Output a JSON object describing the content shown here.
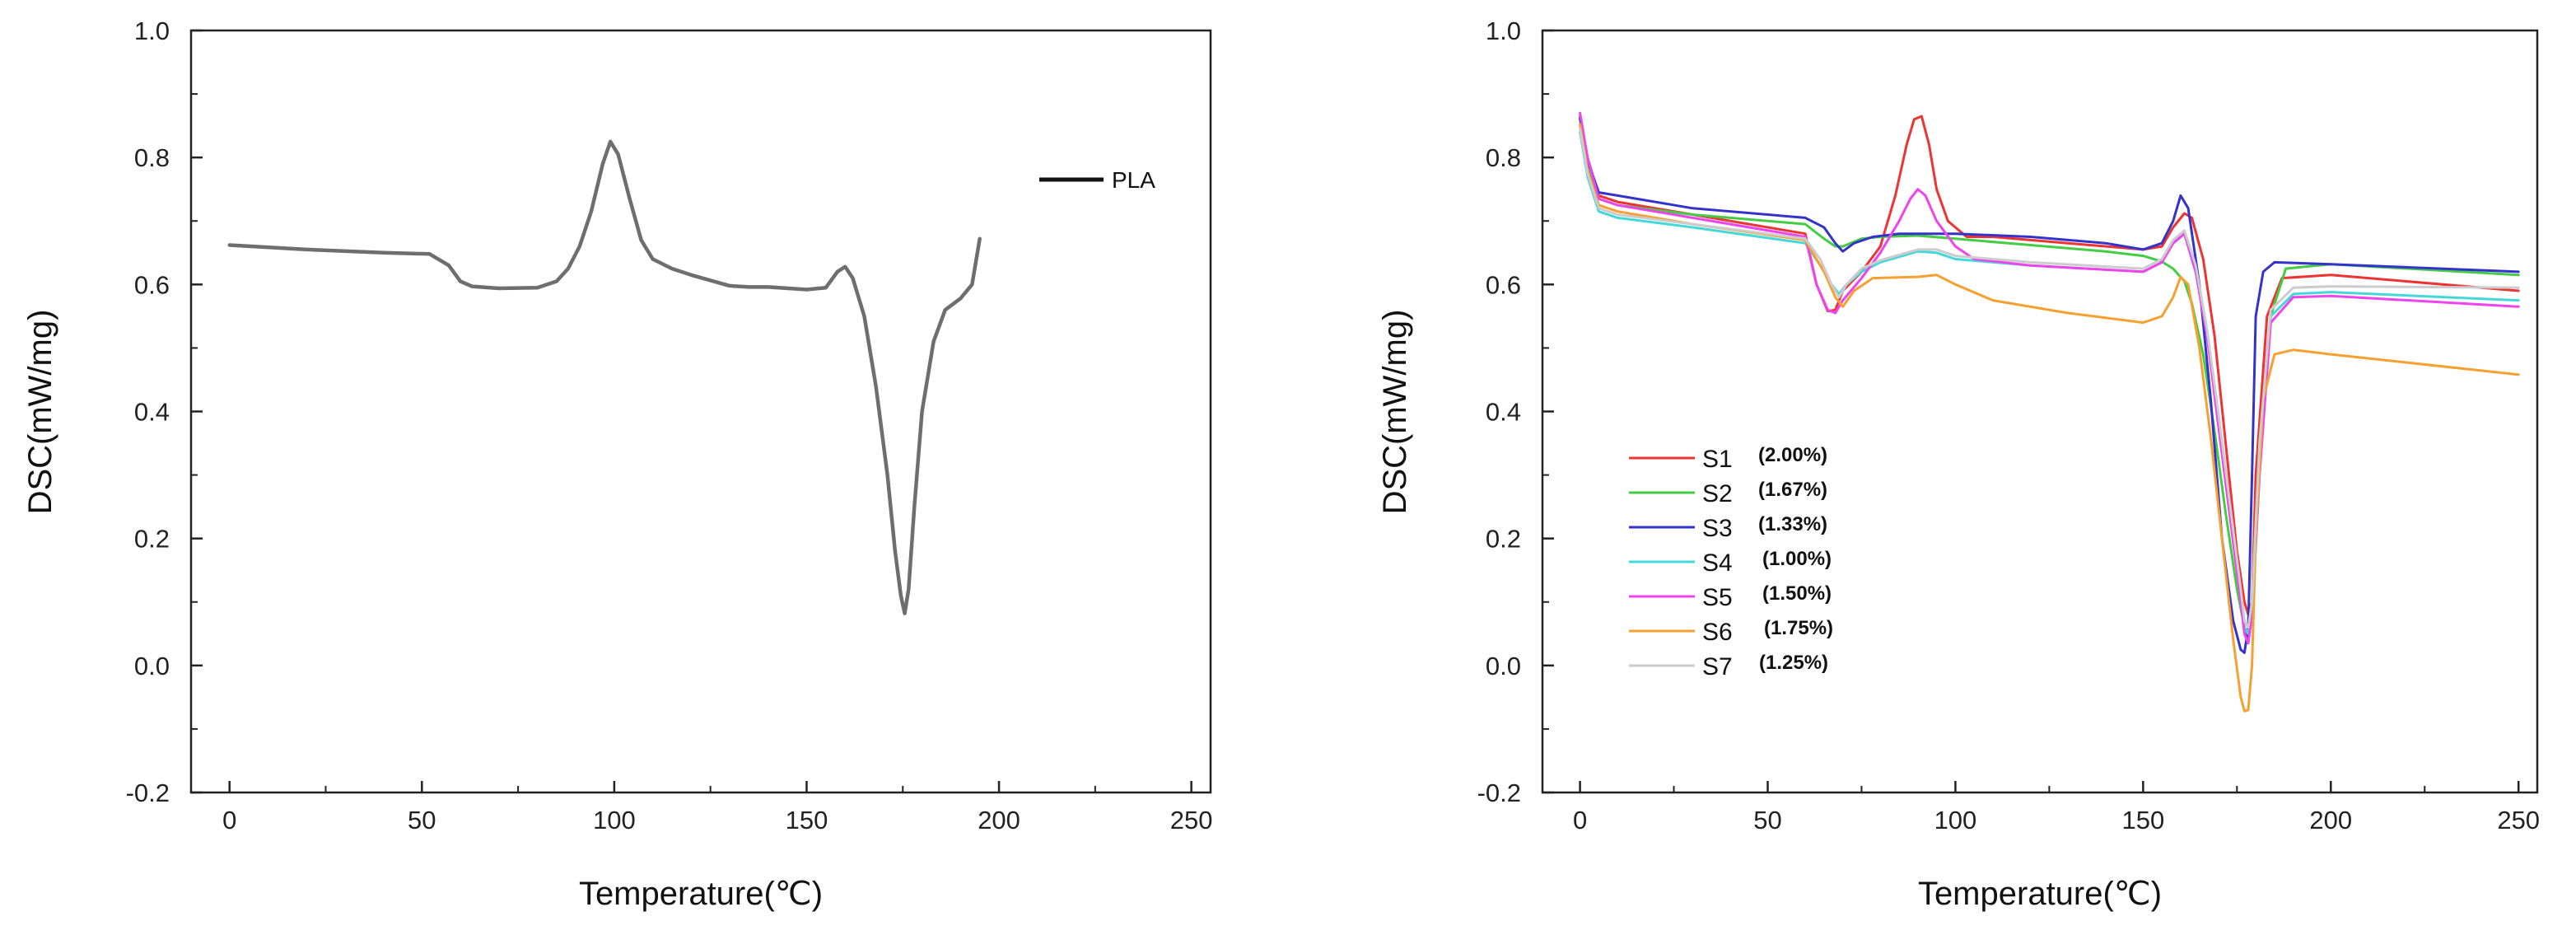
{
  "chart_data": [
    {
      "type": "line",
      "title": "",
      "xlabel": "Temperature(℃)",
      "ylabel": "DSC(mW/mg)",
      "xlim": [
        -10,
        255
      ],
      "ylim": [
        -0.2,
        1.0
      ],
      "xticks": [
        0,
        50,
        100,
        150,
        200,
        250
      ],
      "yticks": [
        -0.2,
        0.0,
        0.2,
        0.4,
        0.6,
        0.8,
        1.0
      ],
      "legend_position": "top-right",
      "series": [
        {
          "name": "PLA",
          "color": "#6e6e6e",
          "legend_color": "#111111",
          "x": [
            0,
            20,
            40,
            52,
            57,
            60,
            63,
            70,
            80,
            85,
            88,
            91,
            94,
            97,
            99,
            101,
            104,
            107,
            110,
            115,
            120,
            130,
            135,
            140,
            150,
            155,
            158,
            160,
            162,
            165,
            168,
            171,
            173,
            174.5,
            175.5,
            176.5,
            178,
            180,
            183,
            186,
            190,
            193,
            195
          ],
          "y": [
            0.662,
            0.655,
            0.65,
            0.648,
            0.63,
            0.605,
            0.597,
            0.594,
            0.595,
            0.605,
            0.625,
            0.66,
            0.715,
            0.79,
            0.825,
            0.805,
            0.735,
            0.67,
            0.64,
            0.625,
            0.615,
            0.598,
            0.596,
            0.596,
            0.592,
            0.595,
            0.62,
            0.628,
            0.61,
            0.55,
            0.44,
            0.3,
            0.18,
            0.11,
            0.082,
            0.12,
            0.25,
            0.4,
            0.51,
            0.56,
            0.578,
            0.6,
            0.672
          ]
        }
      ]
    },
    {
      "type": "line",
      "title": "",
      "xlabel": "Temperature(℃)",
      "ylabel": "DSC(mW/mg)",
      "xlim": [
        -10,
        255
      ],
      "ylim": [
        -0.2,
        1.0
      ],
      "xticks": [
        0,
        50,
        100,
        150,
        200,
        250
      ],
      "yticks": [
        -0.2,
        0.0,
        0.2,
        0.4,
        0.6,
        0.8,
        1.0
      ],
      "legend_position": "center-left",
      "series": [
        {
          "name": "S1",
          "label": "(2.00%)",
          "color": "#ee3333",
          "x": [
            0,
            2,
            5,
            10,
            30,
            60,
            63,
            66,
            68,
            70,
            75,
            80,
            84,
            87,
            89,
            91,
            93,
            95,
            98,
            103,
            110,
            130,
            150,
            155,
            158,
            161,
            163,
            166,
            169,
            172,
            175,
            177,
            178,
            179,
            180,
            183,
            187,
            200,
            250
          ],
          "y": [
            0.865,
            0.8,
            0.74,
            0.73,
            0.71,
            0.68,
            0.6,
            0.558,
            0.56,
            0.59,
            0.62,
            0.66,
            0.74,
            0.82,
            0.86,
            0.865,
            0.82,
            0.75,
            0.7,
            0.675,
            0.675,
            0.665,
            0.655,
            0.66,
            0.69,
            0.712,
            0.705,
            0.64,
            0.52,
            0.35,
            0.18,
            0.1,
            0.08,
            0.1,
            0.3,
            0.55,
            0.61,
            0.615,
            0.59
          ]
        },
        {
          "name": "S2",
          "label": "(1.67%)",
          "color": "#44cc44",
          "x": [
            0,
            2,
            5,
            10,
            30,
            60,
            65,
            68,
            70,
            75,
            80,
            90,
            100,
            120,
            140,
            150,
            155,
            158,
            161,
            163,
            166,
            169,
            172,
            175,
            177,
            178,
            179,
            181,
            184,
            188,
            200,
            250
          ],
          "y": [
            0.86,
            0.79,
            0.735,
            0.725,
            0.71,
            0.695,
            0.672,
            0.66,
            0.66,
            0.672,
            0.675,
            0.677,
            0.672,
            0.662,
            0.652,
            0.645,
            0.636,
            0.625,
            0.605,
            0.57,
            0.49,
            0.37,
            0.24,
            0.12,
            0.06,
            0.04,
            0.08,
            0.3,
            0.55,
            0.625,
            0.632,
            0.615
          ]
        },
        {
          "name": "S3",
          "label": "(1.33%)",
          "color": "#3333cc",
          "x": [
            0,
            2,
            5,
            10,
            30,
            60,
            65,
            68,
            70,
            73,
            78,
            85,
            100,
            120,
            140,
            150,
            155,
            158,
            160,
            162,
            165,
            168,
            171,
            174,
            176,
            177,
            178,
            179,
            180,
            182,
            185,
            200,
            250
          ],
          "y": [
            0.862,
            0.795,
            0.745,
            0.74,
            0.72,
            0.705,
            0.69,
            0.665,
            0.652,
            0.665,
            0.675,
            0.68,
            0.68,
            0.675,
            0.665,
            0.655,
            0.665,
            0.7,
            0.74,
            0.72,
            0.6,
            0.42,
            0.2,
            0.07,
            0.025,
            0.02,
            0.06,
            0.3,
            0.55,
            0.62,
            0.635,
            0.632,
            0.62
          ]
        },
        {
          "name": "S4",
          "label": "(1.00%)",
          "color": "#44d8d8",
          "x": [
            0,
            2,
            5,
            10,
            30,
            60,
            64,
            67,
            69,
            71,
            75,
            80,
            90,
            95,
            100,
            120,
            150,
            155,
            158,
            161,
            164,
            167,
            170,
            173,
            176,
            177,
            178,
            179,
            181,
            184,
            190,
            200,
            250
          ],
          "y": [
            0.84,
            0.77,
            0.715,
            0.705,
            0.69,
            0.665,
            0.63,
            0.6,
            0.585,
            0.6,
            0.62,
            0.635,
            0.652,
            0.65,
            0.64,
            0.63,
            0.62,
            0.635,
            0.665,
            0.68,
            0.62,
            0.52,
            0.39,
            0.25,
            0.1,
            0.06,
            0.05,
            0.1,
            0.35,
            0.55,
            0.585,
            0.588,
            0.575
          ]
        },
        {
          "name": "S5",
          "label": "(1.50%)",
          "color": "#ee44ee",
          "x": [
            0,
            2,
            5,
            10,
            30,
            60,
            63,
            66,
            68,
            70,
            75,
            80,
            85,
            88,
            90,
            92,
            95,
            100,
            105,
            120,
            150,
            155,
            158,
            161,
            164,
            167,
            170,
            173,
            176,
            177,
            178,
            179,
            181,
            184,
            190,
            200,
            250
          ],
          "y": [
            0.87,
            0.8,
            0.735,
            0.725,
            0.705,
            0.675,
            0.6,
            0.56,
            0.555,
            0.575,
            0.61,
            0.65,
            0.7,
            0.735,
            0.75,
            0.74,
            0.7,
            0.66,
            0.64,
            0.63,
            0.62,
            0.635,
            0.665,
            0.68,
            0.62,
            0.52,
            0.38,
            0.24,
            0.1,
            0.05,
            0.035,
            0.08,
            0.3,
            0.54,
            0.58,
            0.582,
            0.565
          ]
        },
        {
          "name": "S6",
          "label": "(1.75%)",
          "color": "#f5a030",
          "x": [
            0,
            2,
            5,
            10,
            30,
            60,
            65,
            68,
            70,
            73,
            78,
            90,
            95,
            100,
            110,
            130,
            150,
            155,
            158,
            160,
            162,
            165,
            168,
            171,
            174,
            176,
            177,
            178,
            179,
            180,
            182,
            185,
            190,
            200,
            250
          ],
          "y": [
            0.852,
            0.78,
            0.725,
            0.715,
            0.695,
            0.67,
            0.62,
            0.58,
            0.565,
            0.59,
            0.61,
            0.612,
            0.615,
            0.6,
            0.575,
            0.555,
            0.54,
            0.55,
            0.58,
            0.612,
            0.6,
            0.5,
            0.36,
            0.2,
            0.04,
            -0.05,
            -0.072,
            -0.07,
            0.0,
            0.2,
            0.42,
            0.49,
            0.497,
            0.49,
            0.458
          ]
        },
        {
          "name": "S7",
          "label": "(1.25%)",
          "color": "#cccccc",
          "x": [
            0,
            2,
            5,
            10,
            30,
            60,
            64,
            67,
            69,
            71,
            75,
            80,
            90,
            95,
            100,
            120,
            150,
            155,
            158,
            161,
            164,
            167,
            170,
            173,
            176,
            177,
            178,
            179,
            181,
            184,
            190,
            200,
            250
          ],
          "y": [
            0.845,
            0.775,
            0.72,
            0.71,
            0.695,
            0.672,
            0.64,
            0.6,
            0.58,
            0.6,
            0.625,
            0.638,
            0.655,
            0.655,
            0.645,
            0.635,
            0.625,
            0.64,
            0.67,
            0.685,
            0.63,
            0.53,
            0.4,
            0.26,
            0.12,
            0.07,
            0.06,
            0.1,
            0.35,
            0.56,
            0.595,
            0.597,
            0.595
          ]
        }
      ]
    }
  ]
}
